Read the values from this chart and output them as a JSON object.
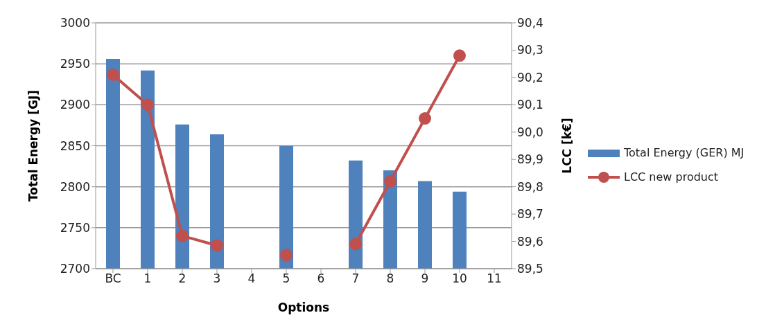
{
  "chart_data": {
    "type": "bar",
    "xlabel": "Options",
    "ylabel": "Total Energy [GJ]",
    "y2label": "LCC [k€]",
    "categories": [
      "BC",
      "1",
      "2",
      "3",
      "4",
      "5",
      "6",
      "7",
      "8",
      "9",
      "10",
      "11"
    ],
    "series": [
      {
        "name": "Total Energy (GER) MJ",
        "color": "#4f81bd",
        "values": [
          2956,
          2942,
          2876,
          2864,
          null,
          2850,
          null,
          2832,
          2820,
          2807,
          2794,
          null
        ]
      },
      {
        "name": "LCC new product",
        "type": "line",
        "axis": "y2",
        "color": "#c0504d",
        "marker": "circle",
        "values": [
          90.21,
          90.1,
          89.62,
          89.585,
          null,
          89.55,
          null,
          89.59,
          89.82,
          90.05,
          90.28,
          null
        ]
      }
    ],
    "ylim": [
      2700,
      3000
    ],
    "yticks": [
      2700,
      2750,
      2800,
      2850,
      2900,
      2950,
      3000
    ],
    "y2lim": [
      89.5,
      90.4
    ],
    "y2ticks": [
      {
        "value": 89.5,
        "label": "89,5"
      },
      {
        "value": 89.6,
        "label": "89,6"
      },
      {
        "value": 89.7,
        "label": "89,7"
      },
      {
        "value": 89.8,
        "label": "89,8"
      },
      {
        "value": 89.9,
        "label": "89,9"
      },
      {
        "value": 90.0,
        "label": "90,0"
      },
      {
        "value": 90.1,
        "label": "90,1"
      },
      {
        "value": 90.2,
        "label": "90,2"
      },
      {
        "value": 90.3,
        "label": "90,3"
      },
      {
        "value": 90.4,
        "label": "90,4"
      }
    ],
    "grid": "y",
    "legend": "right"
  }
}
